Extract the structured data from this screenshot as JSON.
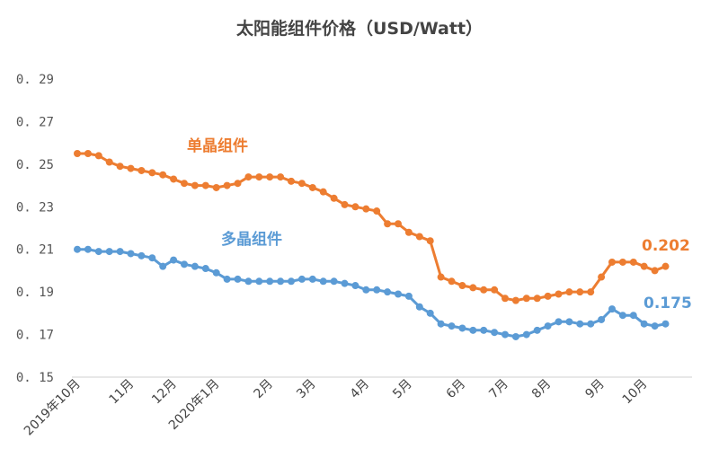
{
  "chart_data": {
    "type": "line",
    "title": "太阳能组件价格（USD/Watt）",
    "xlabel": "",
    "ylabel": "",
    "ylim": [
      0.15,
      0.29
    ],
    "yticks": [
      "0. 15",
      "0. 17",
      "0. 19",
      "0. 21",
      "0. 23",
      "0. 25",
      "0. 27",
      "0. 29"
    ],
    "ytick_values": [
      0.15,
      0.17,
      0.19,
      0.21,
      0.23,
      0.25,
      0.27,
      0.29
    ],
    "grid": false,
    "point_count": 56,
    "xticks": [
      {
        "label": "2019年10月",
        "index": 0
      },
      {
        "label": "11月",
        "index": 5
      },
      {
        "label": "12月",
        "index": 9
      },
      {
        "label": "2020年1月",
        "index": 13
      },
      {
        "label": "2月",
        "index": 18
      },
      {
        "label": "3月",
        "index": 22
      },
      {
        "label": "4月",
        "index": 27
      },
      {
        "label": "5月",
        "index": 31
      },
      {
        "label": "6月",
        "index": 36
      },
      {
        "label": "7月",
        "index": 40
      },
      {
        "label": "8月",
        "index": 44
      },
      {
        "label": "9月",
        "index": 49
      },
      {
        "label": "10月",
        "index": 53
      }
    ],
    "series": [
      {
        "name": "单晶组件",
        "color": "#ED7D31",
        "last_label": "0.202",
        "values": [
          0.255,
          0.255,
          0.254,
          0.251,
          0.249,
          0.248,
          0.247,
          0.246,
          0.245,
          0.243,
          0.241,
          0.24,
          0.24,
          0.239,
          0.24,
          0.241,
          0.244,
          0.244,
          0.244,
          0.244,
          0.242,
          0.241,
          0.239,
          0.237,
          0.234,
          0.231,
          0.23,
          0.229,
          0.228,
          0.222,
          0.222,
          0.218,
          0.216,
          0.214,
          0.197,
          0.195,
          0.193,
          0.192,
          0.191,
          0.191,
          0.187,
          0.186,
          0.187,
          0.187,
          0.188,
          0.189,
          0.19,
          0.19,
          0.19,
          0.197,
          0.204,
          0.204,
          0.204,
          0.202,
          0.2,
          0.202
        ]
      },
      {
        "name": "多晶组件",
        "color": "#5B9BD5",
        "last_label": "0.175",
        "values": [
          0.21,
          0.21,
          0.209,
          0.209,
          0.209,
          0.208,
          0.207,
          0.206,
          0.202,
          0.205,
          0.203,
          0.202,
          0.201,
          0.199,
          0.196,
          0.196,
          0.195,
          0.195,
          0.195,
          0.195,
          0.195,
          0.196,
          0.196,
          0.195,
          0.195,
          0.194,
          0.193,
          0.191,
          0.191,
          0.19,
          0.189,
          0.188,
          0.183,
          0.18,
          0.175,
          0.174,
          0.173,
          0.172,
          0.172,
          0.171,
          0.17,
          0.169,
          0.17,
          0.172,
          0.174,
          0.176,
          0.176,
          0.175,
          0.175,
          0.177,
          0.182,
          0.179,
          0.179,
          0.175,
          0.174,
          0.175
        ]
      }
    ]
  }
}
